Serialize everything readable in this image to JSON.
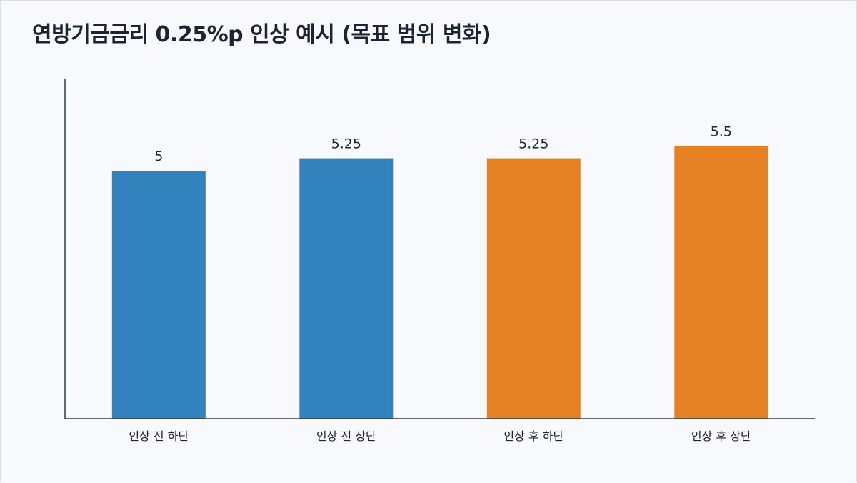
{
  "chart_data": {
    "type": "bar",
    "title": "연방기금금리 0.25%p 인상 예시 (목표 범위 변화)",
    "xlabel": "",
    "ylabel": "",
    "categories": [
      "인상 전 하단",
      "인상 전 상단",
      "인상 후 하단",
      "인상 후 상단"
    ],
    "values": [
      5,
      5.25,
      5.25,
      5.5
    ],
    "value_labels": [
      "5",
      "5.25",
      "5.25",
      "5.5"
    ],
    "bar_colors": [
      "#3282bd",
      "#3282bd",
      "#e68123",
      "#e68123"
    ],
    "ylim": [
      0,
      6.25
    ],
    "grid": false,
    "legend": "none"
  }
}
